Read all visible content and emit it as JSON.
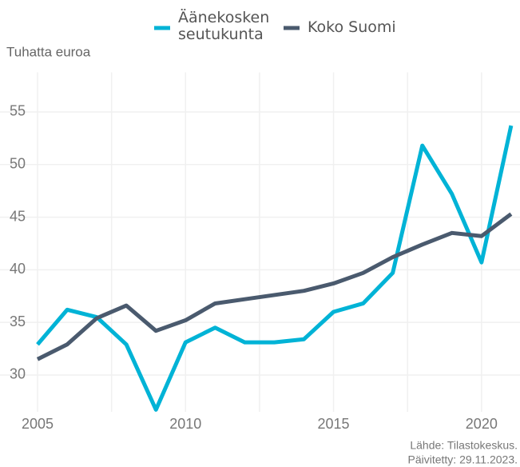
{
  "chart_data": {
    "type": "line",
    "y_axis_label": "Tuhatta euroa",
    "source": "Lähde: Tilastokeskus.",
    "updated": "Päivitetty: 29.11.2023.",
    "x": [
      2005,
      2006,
      2007,
      2008,
      2009,
      2010,
      2011,
      2012,
      2013,
      2014,
      2015,
      2016,
      2017,
      2018,
      2019,
      2020,
      2021
    ],
    "series": [
      {
        "name": "Äänekosken seutukunta",
        "color": "#00b3d6",
        "values": [
          32.9,
          36.2,
          35.5,
          32.9,
          26.7,
          33.1,
          34.5,
          33.1,
          33.1,
          33.4,
          36.0,
          36.8,
          39.7,
          51.8,
          47.2,
          40.7,
          53.7
        ]
      },
      {
        "name": "Koko Suomi",
        "color": "#4a5a6e",
        "values": [
          31.5,
          32.9,
          35.4,
          36.6,
          34.2,
          35.2,
          36.8,
          37.2,
          37.6,
          38.0,
          38.7,
          39.7,
          41.2,
          42.4,
          43.5,
          43.2,
          45.3
        ]
      }
    ],
    "xlim": [
      2005,
      2021.3
    ],
    "xticks": [
      2005,
      2010,
      2015,
      2020
    ],
    "xminor": [
      2007.5,
      2012.5,
      2017.5
    ],
    "ylim": [
      26.5,
      58
    ],
    "yticks": [
      30,
      35,
      40,
      45,
      50,
      55
    ],
    "grid": true,
    "legend": "top"
  }
}
